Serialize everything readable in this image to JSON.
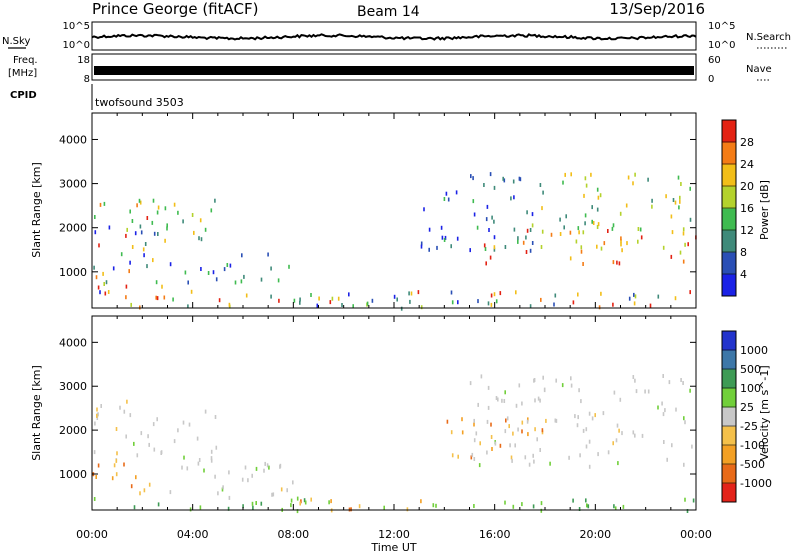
{
  "header": {
    "station": "Prince George (fitACF)",
    "beam": "Beam 14",
    "date": "13/Sep/2016"
  },
  "strips": {
    "nsky": {
      "left_label": "N.Sky",
      "right_label": "N.Search",
      "left_ticks": [
        "10^5",
        "10^0"
      ],
      "right_ticks": [
        "10^5",
        "10^0"
      ]
    },
    "freq": {
      "left_label_1": "Freq.",
      "left_label_2": "[MHz]",
      "right_label": "Nave",
      "left_ticks": [
        "18",
        "8"
      ],
      "right_ticks": [
        "60",
        "0"
      ]
    },
    "cpid": {
      "left_label": "CPID",
      "program": "twofsound 3503"
    }
  },
  "chart_data": [
    {
      "type": "heatmap",
      "quantity": "Power",
      "ylabel": "Slant Range [km]",
      "ylim": [
        180,
        4600
      ],
      "y_ticks": [
        "1000",
        "2000",
        "3000",
        "4000"
      ],
      "xlim_hours": [
        0,
        24
      ],
      "colorbar": {
        "label": "Power [dB]",
        "tick_labels": [
          "4",
          "8",
          "12",
          "16",
          "20",
          "24",
          "28"
        ],
        "colors": [
          "#1b22e6",
          "#2a4fb5",
          "#3f8a7a",
          "#3fbb50",
          "#b4d22c",
          "#f2be18",
          "#f47c16",
          "#e32213"
        ]
      },
      "scatter_regions": [
        {
          "t": [
            0.0,
            3.0
          ],
          "r": [
            600,
            2600
          ],
          "level": "mixed"
        },
        {
          "t": [
            1.0,
            5.0
          ],
          "r": [
            1600,
            2700
          ],
          "level": "mid"
        },
        {
          "t": [
            3.0,
            8.0
          ],
          "r": [
            800,
            1500
          ],
          "level": "low"
        },
        {
          "t": [
            0.0,
            24.0
          ],
          "r": [
            180,
            600
          ],
          "level": "mixed"
        },
        {
          "t": [
            8.0,
            14.0
          ],
          "r": [
            200,
            600
          ],
          "level": "mid"
        },
        {
          "t": [
            13.0,
            18.0
          ],
          "r": [
            1500,
            3300
          ],
          "level": "low"
        },
        {
          "t": [
            15.5,
            24.0
          ],
          "r": [
            1200,
            2000
          ],
          "level": "high"
        },
        {
          "t": [
            17.0,
            24.0
          ],
          "r": [
            1900,
            3300
          ],
          "level": "mid"
        }
      ]
    },
    {
      "type": "heatmap",
      "quantity": "Velocity",
      "ylabel": "Slant Range [km]",
      "ylim": [
        180,
        4600
      ],
      "y_ticks": [
        "1000",
        "2000",
        "3000",
        "4000"
      ],
      "xlim_hours": [
        0,
        24
      ],
      "colorbar": {
        "label": "Velocity [m s^-1]",
        "tick_labels": [
          "1000",
          "500",
          "100",
          "25",
          "-25",
          "-100",
          "-500",
          "-1000"
        ],
        "colors": [
          "#2233cc",
          "#3d77a8",
          "#3e9b55",
          "#71cf3a",
          "#c8c8c8",
          "#f4c04a",
          "#f3a024",
          "#e86a18",
          "#e3231a"
        ]
      },
      "scatter_regions": [
        {
          "t": [
            0.0,
            3.0
          ],
          "r": [
            600,
            1300
          ],
          "level": "neg"
        },
        {
          "t": [
            0.0,
            5.0
          ],
          "r": [
            1300,
            2700
          ],
          "level": "zero"
        },
        {
          "t": [
            3.0,
            8.0
          ],
          "r": [
            500,
            1500
          ],
          "level": "zero"
        },
        {
          "t": [
            0.0,
            24.0
          ],
          "r": [
            200,
            500
          ],
          "level": "pos"
        },
        {
          "t": [
            8.0,
            14.0
          ],
          "r": [
            200,
            500
          ],
          "level": "neg"
        },
        {
          "t": [
            14.0,
            18.0
          ],
          "r": [
            1300,
            2300
          ],
          "level": "neg"
        },
        {
          "t": [
            15.0,
            24.0
          ],
          "r": [
            1200,
            3300
          ],
          "level": "zero"
        }
      ]
    }
  ],
  "x_axis": {
    "tick_labels": [
      "00:00",
      "04:00",
      "08:00",
      "12:00",
      "16:00",
      "20:00",
      "00:00"
    ],
    "label": "Time UT"
  }
}
